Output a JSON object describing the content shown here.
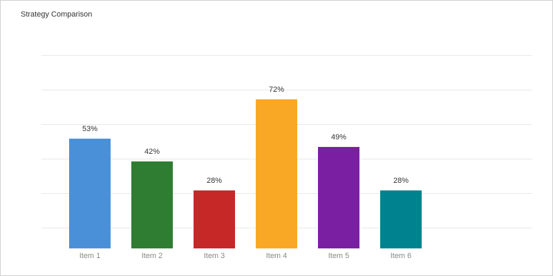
{
  "chart_data": {
    "type": "bar",
    "title": "Strategy Comparison",
    "categories": [
      "Item 1",
      "Item 2",
      "Item 3",
      "Item 4",
      "Item 5",
      "Item 6"
    ],
    "values": [
      53,
      42,
      28,
      72,
      49,
      28
    ],
    "value_labels": [
      "53%",
      "42%",
      "28%",
      "72%",
      "49%",
      "28%"
    ],
    "colors": [
      "#4a90d9",
      "#2e7d32",
      "#c62828",
      "#f9a825",
      "#7b1fa2",
      "#00838f"
    ],
    "ylim": [
      0,
      93.3
    ],
    "yticks": [
      10,
      26.7,
      43.3,
      60,
      76.7,
      93.3
    ],
    "grid": true
  }
}
